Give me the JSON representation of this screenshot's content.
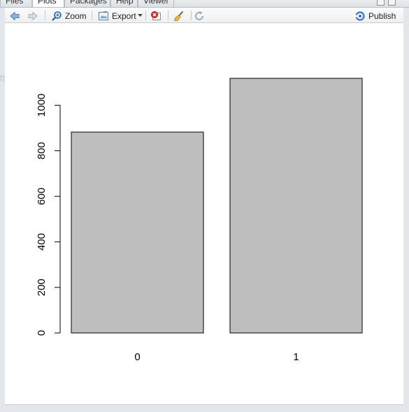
{
  "tabs": [
    {
      "label": "Files",
      "active": false
    },
    {
      "label": "Plots",
      "active": true
    },
    {
      "label": "Packages",
      "active": false
    },
    {
      "label": "Help",
      "active": false
    },
    {
      "label": "Viewer",
      "active": false
    }
  ],
  "toolbar": {
    "zoom_label": "Zoom",
    "export_label": "Export",
    "publish_label": "Publish",
    "icons": [
      "back-arrow-icon",
      "forward-arrow-icon",
      "zoom-icon",
      "export-icon",
      "remove-plot-icon",
      "clear-all-icon",
      "refresh-icon",
      "publish-icon"
    ]
  },
  "chart_data": {
    "type": "bar",
    "categories": [
      "0",
      "1"
    ],
    "values": [
      882,
      1118
    ],
    "yticks": [
      "0",
      "200",
      "400",
      "600",
      "800",
      "1000"
    ],
    "ylim": [
      0,
      1118
    ],
    "bar_fill": "#bebebe",
    "bar_stroke": "#000000",
    "grid": false,
    "title": "",
    "xlabel": "",
    "ylabel": ""
  }
}
